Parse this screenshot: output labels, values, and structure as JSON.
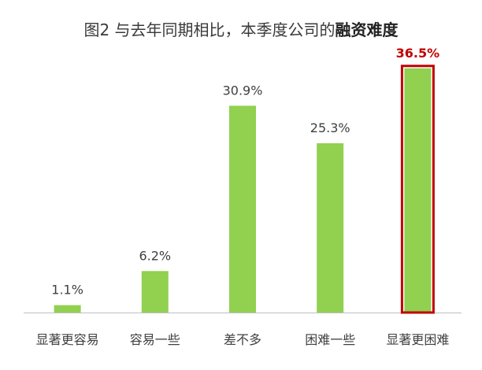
{
  "title": {
    "prefix": "图2 与去年同期相比，本季度公司的",
    "emphasis": "融资难度"
  },
  "chart_data": {
    "type": "bar",
    "categories": [
      "显著更容易",
      "容易一些",
      "差不多",
      "困难一些",
      "显著更困难"
    ],
    "values": [
      1.1,
      6.2,
      30.9,
      25.3,
      36.5
    ],
    "value_labels": [
      "1.1%",
      "6.2%",
      "30.9%",
      "25.3%",
      "36.5%"
    ],
    "highlight_index": 4,
    "ylim": [
      0,
      40
    ],
    "grid": false,
    "xlabel": "",
    "ylabel": "",
    "colors": {
      "bar": "#92d050",
      "highlight_border": "#c00000",
      "highlight_label": "#c00000",
      "label": "#404040",
      "axis": "#bfbfbf"
    }
  }
}
